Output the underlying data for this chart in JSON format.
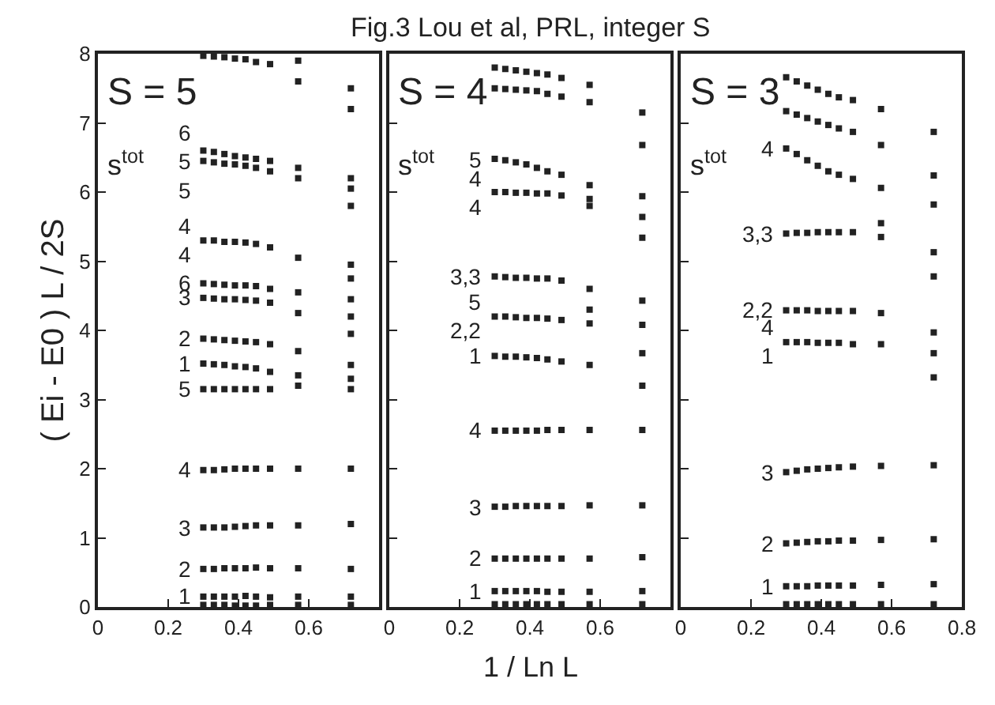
{
  "chart_data": [
    {
      "type": "scatter",
      "ylabel": "( Ei - E0 ) L / 2S",
      "marker": "square",
      "xlim": [
        0,
        0.8
      ],
      "ylim": [
        0,
        8
      ],
      "xticks": [
        0,
        0.2,
        0.4,
        0.6
      ],
      "yticks": [
        0,
        1,
        2,
        3,
        4,
        5,
        6,
        7,
        8
      ],
      "x": [
        0.3,
        0.33,
        0.36,
        0.39,
        0.42,
        0.45,
        0.49,
        0.57,
        0.72
      ],
      "series": [
        {
          "color": "#222222",
          "values": [
            6.45,
            6.43,
            6.41,
            6.4,
            6.38,
            6.35,
            6.3,
            6.2,
            6.05
          ]
        },
        {
          "color": "#222222",
          "values": [
            5.3,
            5.3,
            5.28,
            5.28,
            5.27,
            5.25,
            5.2,
            5.05,
            4.95
          ]
        },
        {
          "color": "#222222",
          "values": [
            4.68,
            4.67,
            4.66,
            4.65,
            4.65,
            4.64,
            4.6,
            4.55,
            4.75
          ]
        },
        {
          "color": "#222222",
          "values": [
            4.47,
            4.46,
            4.45,
            4.45,
            4.44,
            4.43,
            4.4,
            4.25,
            4.45
          ]
        },
        {
          "color": "#222222",
          "values": [
            3.88,
            3.87,
            3.86,
            3.85,
            3.84,
            3.83,
            3.8,
            3.7,
            3.95
          ]
        },
        {
          "color": "#222222",
          "values": [
            3.52,
            3.51,
            3.5,
            3.48,
            3.47,
            3.45,
            3.4,
            3.35,
            3.5
          ]
        },
        {
          "color": "#222222",
          "values": [
            3.15,
            3.15,
            3.15,
            3.15,
            3.15,
            3.15,
            3.15,
            3.2,
            3.15
          ]
        },
        {
          "color": "#222222",
          "values": [
            1.98,
            1.98,
            1.99,
            2.0,
            2.0,
            2.0,
            2.0,
            2.0,
            2.0
          ]
        },
        {
          "color": "#222222",
          "values": [
            1.15,
            1.15,
            1.15,
            1.16,
            1.17,
            1.18,
            1.18,
            1.18,
            1.2
          ]
        },
        {
          "color": "#222222",
          "values": [
            0.55,
            0.55,
            0.56,
            0.56,
            0.56,
            0.57,
            0.56,
            0.56,
            0.55
          ]
        },
        {
          "color": "#222222",
          "values": [
            0.15,
            0.15,
            0.15,
            0.15,
            0.16,
            0.15,
            0.14,
            0.15,
            0.15
          ]
        },
        {
          "color": "#222222",
          "values": [
            7.97,
            7.96,
            7.95,
            7.93,
            7.92,
            7.88,
            7.85,
            7.9,
            7.5
          ]
        },
        {
          "color": "#222222",
          "values": [
            6.6,
            6.58,
            6.55,
            6.52,
            6.5,
            6.48,
            6.45,
            6.35,
            6.2
          ]
        },
        {
          "color": "#222222",
          "values": [
            0.03,
            0.03,
            0.03,
            0.02,
            0.02,
            0.02,
            0.03,
            0.03,
            0.03
          ]
        },
        {
          "color": "#222222",
          "values": [
            null,
            null,
            null,
            null,
            null,
            null,
            null,
            7.6,
            7.2
          ]
        },
        {
          "color": "#222222",
          "values": [
            null,
            null,
            null,
            null,
            null,
            null,
            null,
            null,
            5.8
          ]
        },
        {
          "color": "#222222",
          "values": [
            null,
            null,
            null,
            null,
            null,
            null,
            null,
            null,
            4.2
          ]
        },
        {
          "color": "#222222",
          "values": [
            null,
            null,
            null,
            null,
            null,
            null,
            null,
            null,
            3.3
          ]
        }
      ],
      "annotations": [
        "S = 5",
        "s$^{tot}$",
        "6\n5\n5",
        "4\n4",
        "6",
        "3",
        "2",
        "1",
        "5",
        "4",
        "3",
        "2",
        "1"
      ]
    },
    {
      "type": "scatter",
      "title": "Fig.3 Lou et al, PRL, integer S",
      "xlabel": "1 / Ln L",
      "marker": "square",
      "tick_labels": "x",
      "xlim": [
        0,
        0.8
      ],
      "ylim": [
        0,
        8
      ],
      "xticks": [
        0,
        0.2,
        0.4,
        0.6
      ],
      "yticks": [
        0,
        1,
        2,
        3,
        4,
        5,
        6,
        7,
        8
      ],
      "x": [
        0.3,
        0.33,
        0.36,
        0.39,
        0.42,
        0.45,
        0.49,
        0.57,
        0.72
      ],
      "series": [
        {
          "color": "#222222",
          "values": [
            6.48,
            6.46,
            6.43,
            6.4,
            6.35,
            6.3,
            6.25,
            6.1,
            5.64
          ]
        },
        {
          "color": "#222222",
          "values": [
            6.0,
            6.0,
            5.99,
            5.99,
            5.98,
            5.98,
            5.95,
            5.9,
            5.94
          ]
        },
        {
          "color": "#222222",
          "values": [
            4.78,
            4.77,
            4.76,
            4.76,
            4.75,
            4.75,
            4.72,
            4.6,
            4.43
          ]
        },
        {
          "color": "#222222",
          "values": [
            4.2,
            4.2,
            4.19,
            4.18,
            4.18,
            4.17,
            4.15,
            4.1,
            4.08
          ]
        },
        {
          "color": "#222222",
          "values": [
            3.63,
            3.62,
            3.62,
            3.61,
            3.6,
            3.58,
            3.55,
            3.5,
            3.67
          ]
        },
        {
          "color": "#222222",
          "values": [
            2.55,
            2.55,
            2.55,
            2.55,
            2.55,
            2.56,
            2.56,
            2.56,
            2.56
          ]
        },
        {
          "color": "#222222",
          "values": [
            1.45,
            1.45,
            1.46,
            1.46,
            1.46,
            1.46,
            1.46,
            1.47,
            1.47
          ]
        },
        {
          "color": "#222222",
          "values": [
            0.7,
            0.7,
            0.7,
            0.7,
            0.7,
            0.7,
            0.7,
            0.7,
            0.72
          ]
        },
        {
          "color": "#222222",
          "values": [
            0.23,
            0.23,
            0.23,
            0.23,
            0.23,
            0.22,
            0.22,
            0.22,
            0.23
          ]
        },
        {
          "color": "#222222",
          "values": [
            7.8,
            7.78,
            7.76,
            7.74,
            7.72,
            7.7,
            7.65,
            7.55,
            7.15
          ]
        },
        {
          "color": "#222222",
          "values": [
            7.5,
            7.49,
            7.48,
            7.47,
            7.46,
            7.42,
            7.38,
            7.3,
            6.68
          ]
        },
        {
          "color": "#222222",
          "values": [
            0.04,
            0.04,
            0.04,
            0.04,
            0.04,
            0.04,
            0.04,
            0.04,
            0.04
          ]
        },
        {
          "color": "#222222",
          "values": [
            null,
            null,
            null,
            null,
            null,
            null,
            null,
            4.3,
            5.34
          ]
        },
        {
          "color": "#222222",
          "values": [
            null,
            null,
            null,
            null,
            null,
            null,
            null,
            5.8,
            3.2
          ]
        }
      ],
      "annotations": [
        "S = 4",
        "s$^{tot}$",
        "5",
        "4\n4",
        "3,3",
        "5\n2,2",
        "1",
        "4",
        "3",
        "2",
        "1"
      ]
    },
    {
      "type": "scatter",
      "marker": "square",
      "tick_labels": "x",
      "xlim": [
        0,
        0.8
      ],
      "ylim": [
        0,
        8
      ],
      "xticks": [
        0,
        0.2,
        0.4,
        0.6,
        0.8
      ],
      "yticks": [
        0,
        1,
        2,
        3,
        4,
        5,
        6,
        7,
        8
      ],
      "x": [
        0.3,
        0.33,
        0.36,
        0.39,
        0.42,
        0.45,
        0.49,
        0.57,
        0.72
      ],
      "series": [
        {
          "color": "#222222",
          "values": [
            6.63,
            6.55,
            6.46,
            6.38,
            6.3,
            6.25,
            6.19,
            6.06,
            5.82
          ]
        },
        {
          "color": "#222222",
          "values": [
            5.4,
            5.41,
            5.41,
            5.42,
            5.42,
            5.42,
            5.42,
            5.35,
            5.13
          ]
        },
        {
          "color": "#222222",
          "values": [
            4.29,
            4.29,
            4.29,
            4.28,
            4.28,
            4.28,
            4.28,
            4.25,
            4.78
          ]
        },
        {
          "color": "#222222",
          "values": [
            3.83,
            3.83,
            3.83,
            3.82,
            3.82,
            3.82,
            3.8,
            3.8,
            3.97
          ]
        },
        {
          "color": "#222222",
          "values": [
            1.95,
            1.97,
            1.99,
            2.0,
            2.01,
            2.02,
            2.03,
            2.04,
            2.05
          ]
        },
        {
          "color": "#222222",
          "values": [
            0.92,
            0.93,
            0.94,
            0.95,
            0.95,
            0.96,
            0.96,
            0.97,
            0.98
          ]
        },
        {
          "color": "#222222",
          "values": [
            0.3,
            0.3,
            0.3,
            0.31,
            0.31,
            0.31,
            0.31,
            0.32,
            0.33
          ]
        },
        {
          "color": "#222222",
          "values": [
            7.66,
            7.6,
            7.54,
            7.48,
            7.42,
            7.37,
            7.33,
            7.2,
            6.87
          ]
        },
        {
          "color": "#222222",
          "values": [
            7.17,
            7.12,
            7.07,
            7.02,
            6.97,
            6.92,
            6.87,
            6.68,
            6.24
          ]
        },
        {
          "color": "#222222",
          "values": [
            0.04,
            0.04,
            0.04,
            0.04,
            0.04,
            0.04,
            0.04,
            0.04,
            0.04
          ]
        },
        {
          "color": "#222222",
          "values": [
            null,
            null,
            null,
            null,
            null,
            null,
            null,
            5.55,
            3.67
          ]
        },
        {
          "color": "#222222",
          "values": [
            null,
            null,
            null,
            null,
            null,
            null,
            null,
            null,
            3.32
          ]
        }
      ],
      "annotations": [
        "S = 3",
        "s$^{tot}$",
        "4",
        "3,3",
        "2,2",
        "4\n1",
        "3",
        "2",
        "1"
      ]
    }
  ]
}
